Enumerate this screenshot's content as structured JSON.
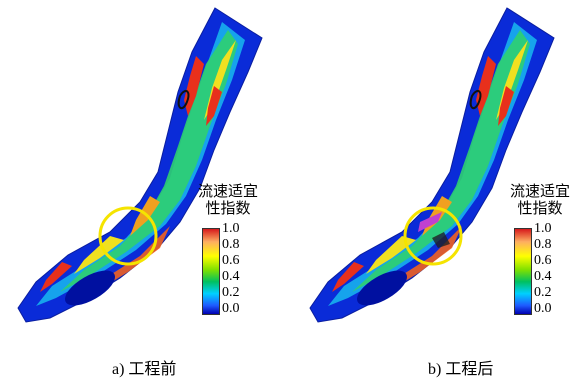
{
  "panels": [
    {
      "caption": "a) 工程前",
      "legend_title_line1": "流速适宜",
      "legend_title_line2": "性指数",
      "ticks": [
        "1.0",
        "0.8",
        "0.6",
        "0.4",
        "0.2",
        "0.0"
      ]
    },
    {
      "caption": "b) 工程后",
      "legend_title_line1": "流速适宜",
      "legend_title_line2": "性指数",
      "ticks": [
        "1.0",
        "0.8",
        "0.6",
        "0.4",
        "0.2",
        "0.0"
      ]
    }
  ],
  "colors": {
    "low": "#0000b0",
    "mid": "#00c060",
    "high": "#d7191c",
    "highlight_circle": "#f5e400"
  }
}
